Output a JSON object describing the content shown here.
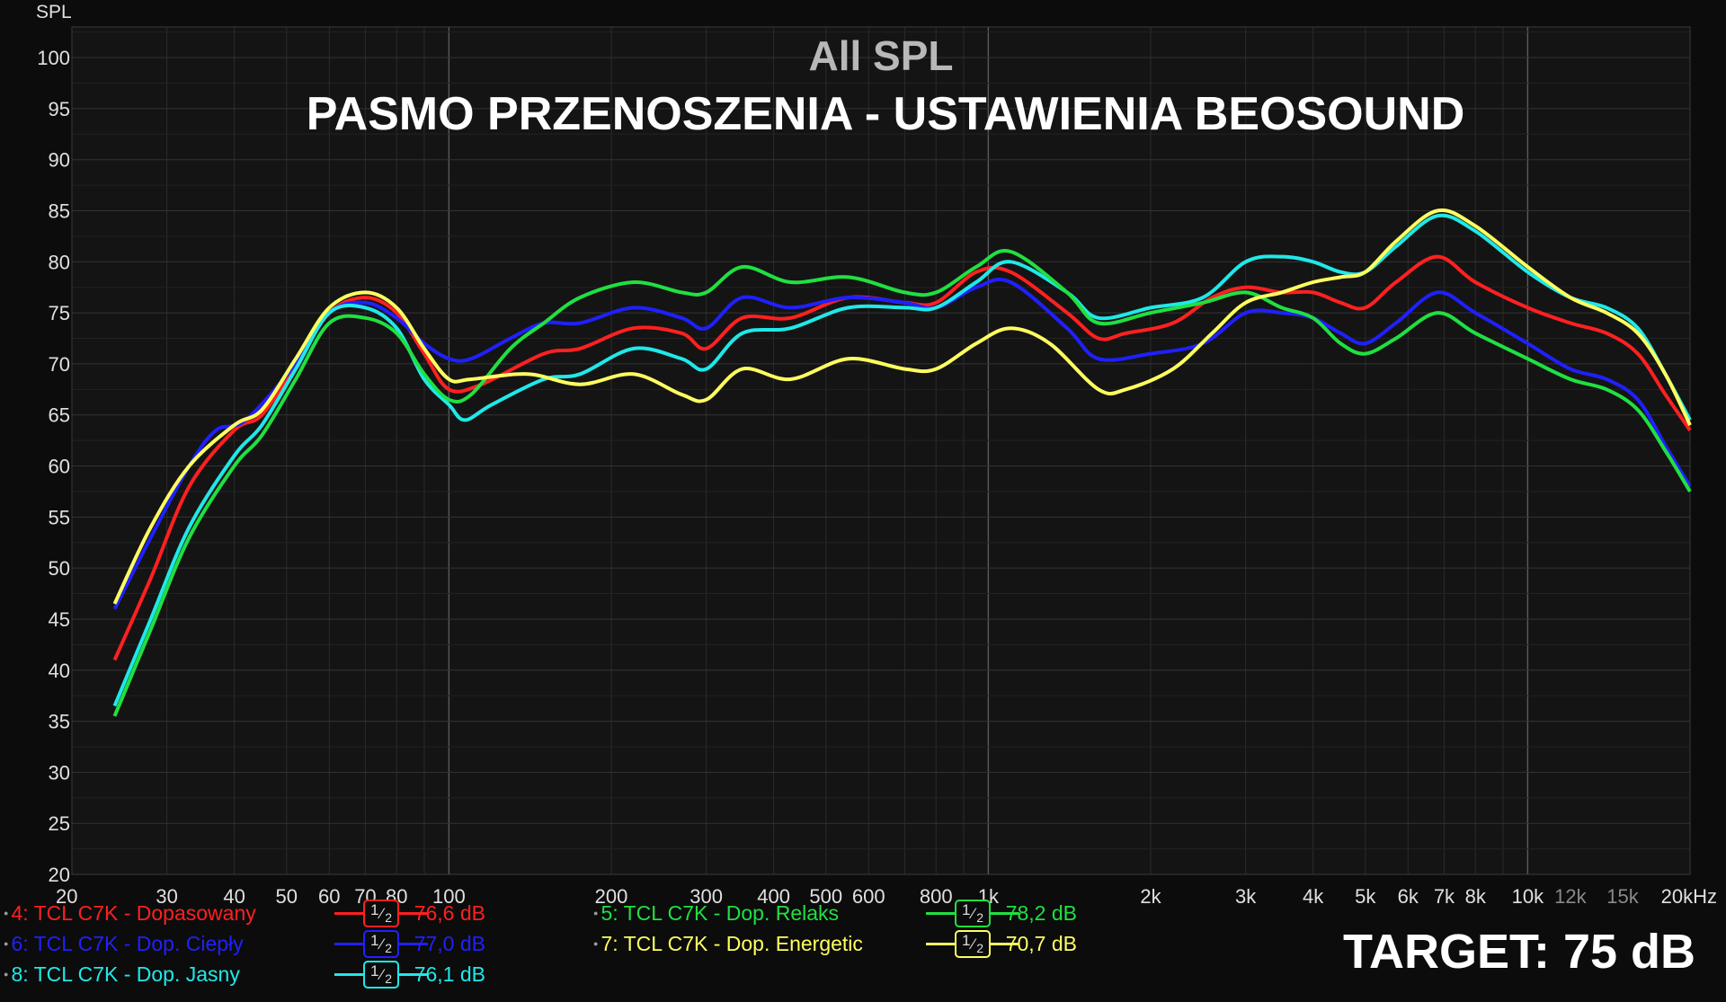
{
  "chart_data": {
    "type": "line",
    "title": "All SPL",
    "subtitle": "PASMO PRZENOSZENIA - USTAWIENIA BEOSOUND",
    "ylabel": "SPL",
    "xlabel_unit": "Hz",
    "x_scale": "log",
    "xlim": [
      20,
      20000
    ],
    "ylim": [
      20,
      103
    ],
    "y_ticks": [
      20,
      25,
      30,
      35,
      40,
      45,
      50,
      55,
      60,
      65,
      70,
      75,
      80,
      85,
      90,
      95,
      100
    ],
    "x_ticks": [
      {
        "v": 20,
        "label": "20"
      },
      {
        "v": 30,
        "label": "30"
      },
      {
        "v": 40,
        "label": "40"
      },
      {
        "v": 50,
        "label": "50"
      },
      {
        "v": 60,
        "label": "60"
      },
      {
        "v": 70,
        "label": "70"
      },
      {
        "v": 80,
        "label": "80"
      },
      {
        "v": 100,
        "label": "100"
      },
      {
        "v": 200,
        "label": "200"
      },
      {
        "v": 300,
        "label": "300"
      },
      {
        "v": 400,
        "label": "400"
      },
      {
        "v": 500,
        "label": "500"
      },
      {
        "v": 600,
        "label": "600"
      },
      {
        "v": 800,
        "label": "800"
      },
      {
        "v": 1000,
        "label": "1k"
      },
      {
        "v": 2000,
        "label": "2k"
      },
      {
        "v": 3000,
        "label": "3k"
      },
      {
        "v": 4000,
        "label": "4k"
      },
      {
        "v": 5000,
        "label": "5k"
      },
      {
        "v": 6000,
        "label": "6k"
      },
      {
        "v": 7000,
        "label": "7k"
      },
      {
        "v": 8000,
        "label": "8k"
      },
      {
        "v": 10000,
        "label": "10k"
      },
      {
        "v": 12000,
        "label": "12k"
      },
      {
        "v": 15000,
        "label": "15k"
      },
      {
        "v": 20000,
        "label": "20kHz"
      }
    ],
    "grid": true,
    "series": [
      {
        "name": "4: TCL C7K - Dopasowany",
        "color": "#ff2020",
        "value_label": "76,6 dB",
        "smoothing": "1/2",
        "points": [
          [
            24,
            41
          ],
          [
            28,
            49
          ],
          [
            33,
            58
          ],
          [
            40,
            63.5
          ],
          [
            45,
            65
          ],
          [
            52,
            70
          ],
          [
            60,
            75
          ],
          [
            70,
            76.5
          ],
          [
            80,
            75
          ],
          [
            90,
            71
          ],
          [
            100,
            67.5
          ],
          [
            115,
            68
          ],
          [
            150,
            71
          ],
          [
            175,
            71.5
          ],
          [
            220,
            73.5
          ],
          [
            270,
            73
          ],
          [
            300,
            71.5
          ],
          [
            350,
            74.5
          ],
          [
            430,
            74.5
          ],
          [
            550,
            76.5
          ],
          [
            700,
            76
          ],
          [
            800,
            76
          ],
          [
            950,
            79
          ],
          [
            1100,
            79
          ],
          [
            1400,
            75
          ],
          [
            1600,
            72.5
          ],
          [
            1800,
            73
          ],
          [
            2200,
            74
          ],
          [
            2600,
            76.5
          ],
          [
            3000,
            77.5
          ],
          [
            3500,
            77
          ],
          [
            4000,
            77
          ],
          [
            4500,
            76
          ],
          [
            5000,
            75.5
          ],
          [
            5700,
            78
          ],
          [
            6800,
            80.5
          ],
          [
            8000,
            78
          ],
          [
            10000,
            75.5
          ],
          [
            12000,
            74
          ],
          [
            14000,
            73
          ],
          [
            16000,
            71
          ],
          [
            18000,
            67
          ],
          [
            20000,
            63.5
          ]
        ]
      },
      {
        "name": "6: TCL C7K - Dop. Ciepły",
        "color": "#2020ff",
        "value_label": "77,0 dB",
        "smoothing": "1/2",
        "points": [
          [
            24,
            46
          ],
          [
            28,
            53
          ],
          [
            33,
            60
          ],
          [
            37,
            63.5
          ],
          [
            42,
            64.5
          ],
          [
            52,
            70
          ],
          [
            60,
            75
          ],
          [
            70,
            76
          ],
          [
            80,
            74.5
          ],
          [
            90,
            72
          ],
          [
            100,
            70.5
          ],
          [
            110,
            70.5
          ],
          [
            130,
            72.5
          ],
          [
            150,
            74
          ],
          [
            175,
            74
          ],
          [
            220,
            75.5
          ],
          [
            270,
            74.5
          ],
          [
            300,
            73.5
          ],
          [
            350,
            76.5
          ],
          [
            430,
            75.5
          ],
          [
            550,
            76.5
          ],
          [
            700,
            76
          ],
          [
            800,
            75.5
          ],
          [
            950,
            77.5
          ],
          [
            1100,
            78
          ],
          [
            1400,
            73.5
          ],
          [
            1600,
            70.5
          ],
          [
            2000,
            71
          ],
          [
            2500,
            72
          ],
          [
            3000,
            75
          ],
          [
            3500,
            75
          ],
          [
            4000,
            74.5
          ],
          [
            4500,
            73
          ],
          [
            5000,
            72
          ],
          [
            5700,
            74
          ],
          [
            6800,
            77
          ],
          [
            8000,
            75
          ],
          [
            10000,
            72
          ],
          [
            12000,
            69.5
          ],
          [
            14000,
            68.5
          ],
          [
            16000,
            66.5
          ],
          [
            18000,
            62
          ],
          [
            20000,
            58
          ]
        ]
      },
      {
        "name": "8: TCL C7K - Dop. Jasny",
        "color": "#20e8e8",
        "value_label": "76,1 dB",
        "smoothing": "1/2",
        "points": [
          [
            24,
            36.5
          ],
          [
            28,
            45
          ],
          [
            33,
            54
          ],
          [
            40,
            61
          ],
          [
            45,
            64
          ],
          [
            52,
            69.5
          ],
          [
            60,
            75
          ],
          [
            70,
            75.5
          ],
          [
            80,
            73.5
          ],
          [
            90,
            68.5
          ],
          [
            100,
            66
          ],
          [
            107,
            64.5
          ],
          [
            120,
            66
          ],
          [
            150,
            68.5
          ],
          [
            175,
            69
          ],
          [
            220,
            71.5
          ],
          [
            270,
            70.5
          ],
          [
            300,
            69.5
          ],
          [
            350,
            73
          ],
          [
            430,
            73.5
          ],
          [
            550,
            75.5
          ],
          [
            700,
            75.5
          ],
          [
            800,
            75.5
          ],
          [
            950,
            78
          ],
          [
            1100,
            80
          ],
          [
            1400,
            77
          ],
          [
            1600,
            74.5
          ],
          [
            2000,
            75.5
          ],
          [
            2500,
            76.5
          ],
          [
            3000,
            80
          ],
          [
            3500,
            80.5
          ],
          [
            4000,
            80
          ],
          [
            4500,
            79
          ],
          [
            5000,
            79
          ],
          [
            5700,
            81.5
          ],
          [
            6800,
            84.5
          ],
          [
            8000,
            83
          ],
          [
            10000,
            79
          ],
          [
            12000,
            76.5
          ],
          [
            14000,
            75.5
          ],
          [
            16000,
            73.5
          ],
          [
            18000,
            69
          ],
          [
            20000,
            64.5
          ]
        ]
      },
      {
        "name": "5: TCL C7K - Dop. Relaks",
        "color": "#20e040",
        "value_label": "78,2 dB",
        "smoothing": "1/2",
        "points": [
          [
            24,
            35.5
          ],
          [
            28,
            44
          ],
          [
            33,
            53
          ],
          [
            40,
            60
          ],
          [
            45,
            63
          ],
          [
            52,
            68.5
          ],
          [
            60,
            74
          ],
          [
            70,
            74.5
          ],
          [
            80,
            73
          ],
          [
            90,
            69
          ],
          [
            100,
            66.5
          ],
          [
            110,
            67
          ],
          [
            130,
            71.5
          ],
          [
            150,
            74
          ],
          [
            175,
            76.5
          ],
          [
            220,
            78
          ],
          [
            270,
            77
          ],
          [
            300,
            77
          ],
          [
            350,
            79.5
          ],
          [
            430,
            78
          ],
          [
            550,
            78.5
          ],
          [
            700,
            77
          ],
          [
            800,
            77
          ],
          [
            950,
            79.5
          ],
          [
            1100,
            81
          ],
          [
            1400,
            77
          ],
          [
            1600,
            74
          ],
          [
            2000,
            75
          ],
          [
            2500,
            76
          ],
          [
            3000,
            77
          ],
          [
            3500,
            75.5
          ],
          [
            4000,
            74.5
          ],
          [
            4500,
            72
          ],
          [
            5000,
            71
          ],
          [
            5700,
            72.5
          ],
          [
            6800,
            75
          ],
          [
            8000,
            73
          ],
          [
            10000,
            70.5
          ],
          [
            12000,
            68.5
          ],
          [
            14000,
            67.5
          ],
          [
            16000,
            65.5
          ],
          [
            18000,
            61.5
          ],
          [
            20000,
            57.5
          ]
        ]
      },
      {
        "name": "7: TCL C7K - Dop. Energetic",
        "color": "#ffff60",
        "value_label": "70,7 dB",
        "smoothing": "1/2",
        "points": [
          [
            24,
            46.5
          ],
          [
            28,
            54
          ],
          [
            33,
            60
          ],
          [
            40,
            64
          ],
          [
            45,
            65.5
          ],
          [
            52,
            70.5
          ],
          [
            60,
            75.5
          ],
          [
            70,
            77
          ],
          [
            80,
            75.5
          ],
          [
            90,
            71.5
          ],
          [
            100,
            68.5
          ],
          [
            110,
            68.5
          ],
          [
            140,
            69
          ],
          [
            175,
            68
          ],
          [
            220,
            69
          ],
          [
            270,
            67
          ],
          [
            300,
            66.5
          ],
          [
            350,
            69.5
          ],
          [
            430,
            68.5
          ],
          [
            550,
            70.5
          ],
          [
            700,
            69.5
          ],
          [
            800,
            69.5
          ],
          [
            950,
            72
          ],
          [
            1100,
            73.5
          ],
          [
            1300,
            72
          ],
          [
            1600,
            67.5
          ],
          [
            1800,
            67.5
          ],
          [
            2200,
            69.5
          ],
          [
            2600,
            73
          ],
          [
            3000,
            76
          ],
          [
            3500,
            77
          ],
          [
            4000,
            78
          ],
          [
            4500,
            78.5
          ],
          [
            5000,
            79
          ],
          [
            5700,
            82
          ],
          [
            6800,
            85
          ],
          [
            8000,
            83.5
          ],
          [
            10000,
            79.5
          ],
          [
            12000,
            76.5
          ],
          [
            14000,
            75
          ],
          [
            16000,
            73
          ],
          [
            18000,
            69
          ],
          [
            20000,
            64
          ]
        ]
      }
    ]
  },
  "legend": [
    {
      "label": "4: TCL C7K - Dopasowany",
      "value": "76,6 dB",
      "color": "#ff2020",
      "smoothing_num": "1",
      "smoothing_den": "2"
    },
    {
      "label": "6: TCL C7K - Dop. Ciepły",
      "value": "77,0 dB",
      "color": "#2020ff",
      "smoothing_num": "1",
      "smoothing_den": "2"
    },
    {
      "label": "8: TCL C7K - Dop. Jasny",
      "value": "76,1 dB",
      "color": "#20e8e8",
      "smoothing_num": "1",
      "smoothing_den": "2"
    },
    {
      "label": "5: TCL C7K - Dop. Relaks",
      "value": "78,2 dB",
      "color": "#20e040",
      "smoothing_num": "1",
      "smoothing_den": "2"
    },
    {
      "label": "7: TCL C7K - Dop. Energetic",
      "value": "70,7 dB",
      "color": "#ffff60",
      "smoothing_num": "1",
      "smoothing_den": "2"
    }
  ],
  "target_text": "TARGET: 75 dB"
}
